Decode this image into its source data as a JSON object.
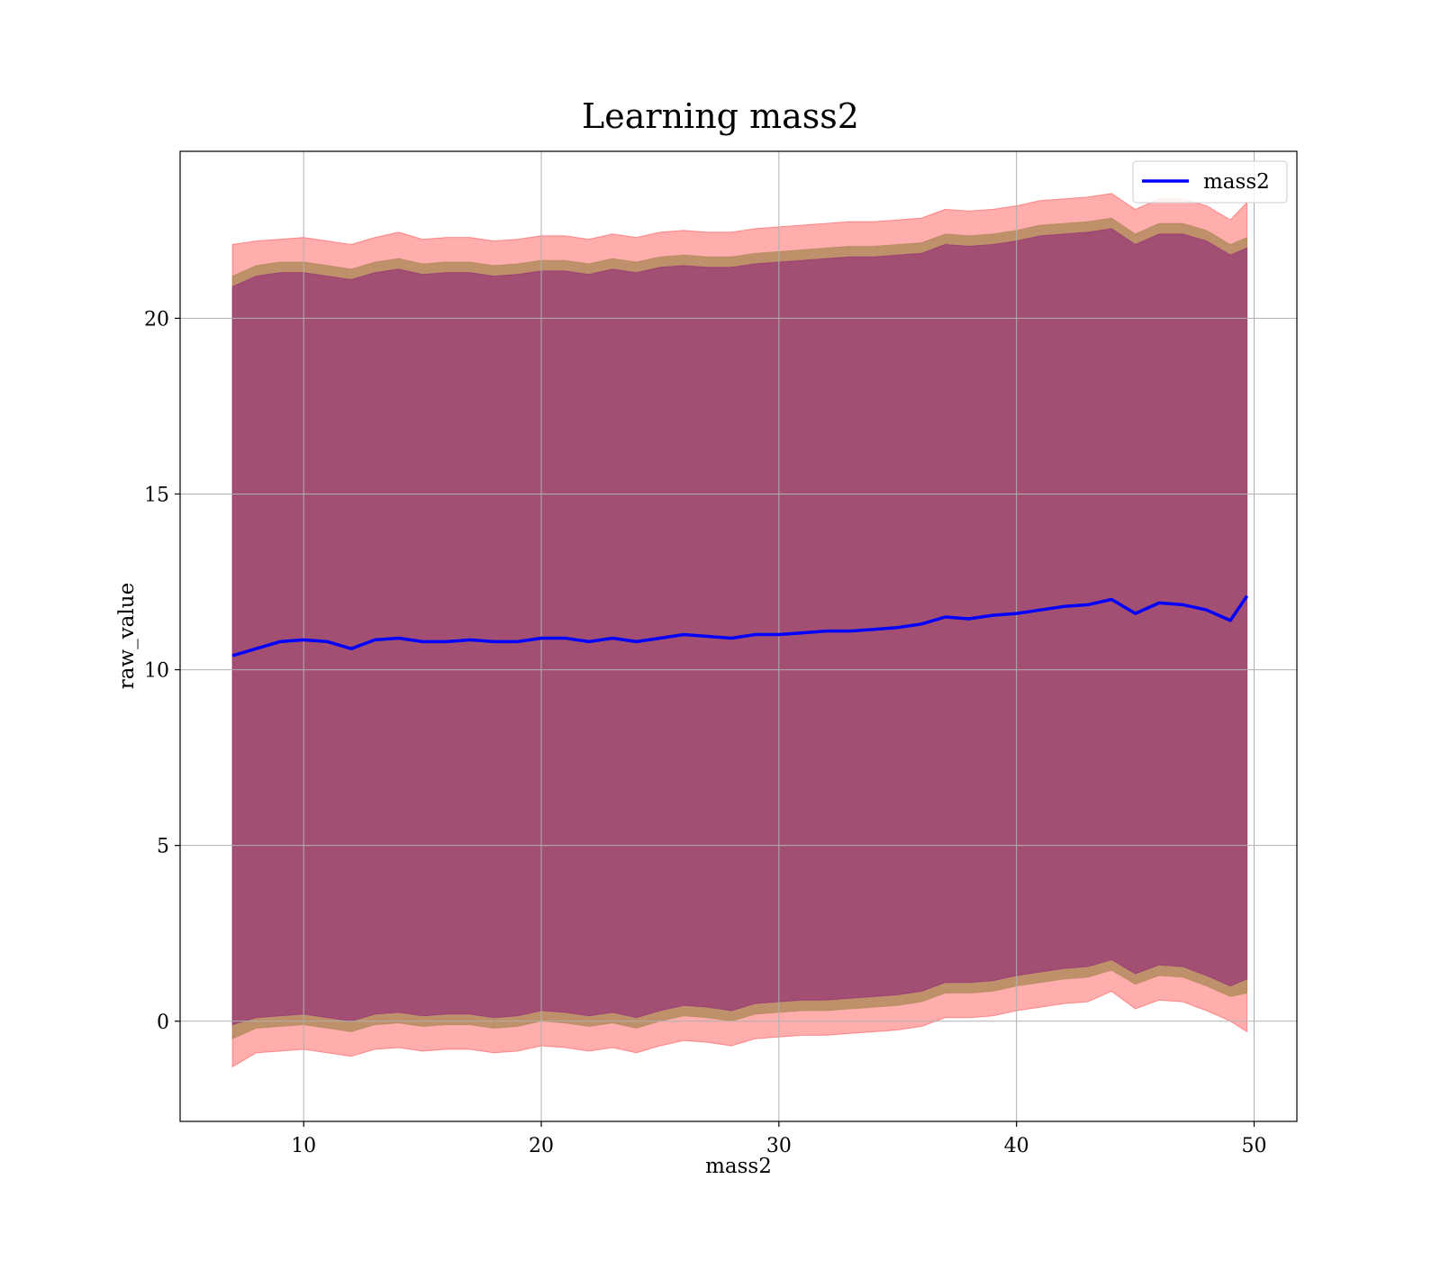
{
  "chart_data": {
    "type": "line",
    "title": "Learning mass2",
    "xlabel": "mass2",
    "ylabel": "raw_value",
    "xlim": [
      4.8,
      51.8
    ],
    "ylim": [
      -2.85,
      24.75
    ],
    "xticks": [
      10,
      20,
      30,
      40,
      50
    ],
    "yticks": [
      0,
      5,
      10,
      15,
      20
    ],
    "grid": true,
    "legend": {
      "position": "upper right",
      "entries": [
        "mass2"
      ]
    },
    "colors": {
      "line": "#0000ff",
      "band_outer": "#ff0000",
      "band_middle": "#8b7a33",
      "band_inner": "#800080",
      "grid": "#b0b0b0"
    },
    "series": [
      {
        "name": "mass2",
        "x": [
          7,
          8,
          9,
          10,
          11,
          12,
          13,
          14,
          15,
          16,
          17,
          18,
          19,
          20,
          21,
          22,
          23,
          24,
          25,
          26,
          27,
          28,
          29,
          30,
          31,
          32,
          33,
          34,
          35,
          36,
          37,
          38,
          39,
          40,
          41,
          42,
          43,
          44,
          45,
          46,
          47,
          48,
          49,
          49.7
        ],
        "y": [
          10.4,
          10.6,
          10.8,
          10.85,
          10.8,
          10.6,
          10.85,
          10.9,
          10.8,
          10.8,
          10.85,
          10.8,
          10.8,
          10.9,
          10.9,
          10.8,
          10.9,
          10.8,
          10.9,
          11.0,
          10.95,
          10.9,
          11.0,
          11.0,
          11.05,
          11.1,
          11.1,
          11.15,
          11.2,
          11.3,
          11.5,
          11.45,
          11.55,
          11.6,
          11.7,
          11.8,
          11.85,
          12.0,
          11.6,
          11.9,
          11.85,
          11.7,
          11.4,
          12.1
        ]
      }
    ],
    "bands": [
      {
        "layer": "outer",
        "x": [
          7,
          8,
          9,
          10,
          11,
          12,
          13,
          14,
          15,
          16,
          17,
          18,
          19,
          20,
          21,
          22,
          23,
          24,
          25,
          26,
          27,
          28,
          29,
          30,
          31,
          32,
          33,
          34,
          35,
          36,
          37,
          38,
          39,
          40,
          41,
          42,
          43,
          44,
          45,
          46,
          47,
          48,
          49,
          49.7
        ],
        "lower": [
          -1.3,
          -0.9,
          -0.85,
          -0.8,
          -0.9,
          -1.0,
          -0.8,
          -0.75,
          -0.85,
          -0.8,
          -0.8,
          -0.9,
          -0.85,
          -0.7,
          -0.75,
          -0.85,
          -0.75,
          -0.9,
          -0.7,
          -0.55,
          -0.6,
          -0.7,
          -0.5,
          -0.45,
          -0.4,
          -0.4,
          -0.35,
          -0.3,
          -0.25,
          -0.15,
          0.1,
          0.1,
          0.15,
          0.3,
          0.4,
          0.5,
          0.55,
          0.85,
          0.35,
          0.6,
          0.55,
          0.3,
          0.0,
          -0.3
        ],
        "upper": [
          22.1,
          22.2,
          22.25,
          22.3,
          22.2,
          22.1,
          22.3,
          22.45,
          22.25,
          22.3,
          22.3,
          22.2,
          22.25,
          22.35,
          22.35,
          22.25,
          22.4,
          22.3,
          22.45,
          22.5,
          22.45,
          22.45,
          22.55,
          22.6,
          22.65,
          22.7,
          22.75,
          22.75,
          22.8,
          22.85,
          23.1,
          23.05,
          23.1,
          23.2,
          23.35,
          23.4,
          23.45,
          23.55,
          23.1,
          23.4,
          23.4,
          23.2,
          22.8,
          23.3
        ]
      },
      {
        "layer": "middle",
        "x": [
          7,
          8,
          9,
          10,
          11,
          12,
          13,
          14,
          15,
          16,
          17,
          18,
          19,
          20,
          21,
          22,
          23,
          24,
          25,
          26,
          27,
          28,
          29,
          30,
          31,
          32,
          33,
          34,
          35,
          36,
          37,
          38,
          39,
          40,
          41,
          42,
          43,
          44,
          45,
          46,
          47,
          48,
          49,
          49.7
        ],
        "lower": [
          -0.5,
          -0.2,
          -0.15,
          -0.1,
          -0.2,
          -0.3,
          -0.1,
          -0.05,
          -0.15,
          -0.1,
          -0.1,
          -0.2,
          -0.15,
          0.0,
          -0.05,
          -0.15,
          -0.05,
          -0.2,
          0.0,
          0.15,
          0.1,
          0.0,
          0.2,
          0.25,
          0.3,
          0.3,
          0.35,
          0.4,
          0.45,
          0.55,
          0.8,
          0.8,
          0.85,
          1.0,
          1.1,
          1.2,
          1.25,
          1.45,
          1.05,
          1.3,
          1.25,
          1.0,
          0.7,
          0.8
        ],
        "upper": [
          21.2,
          21.5,
          21.6,
          21.6,
          21.5,
          21.4,
          21.6,
          21.7,
          21.55,
          21.6,
          21.6,
          21.5,
          21.55,
          21.65,
          21.65,
          21.55,
          21.7,
          21.6,
          21.75,
          21.8,
          21.75,
          21.75,
          21.85,
          21.9,
          21.95,
          22.0,
          22.05,
          22.05,
          22.1,
          22.15,
          22.4,
          22.35,
          22.4,
          22.5,
          22.65,
          22.7,
          22.75,
          22.85,
          22.4,
          22.7,
          22.7,
          22.5,
          22.1,
          22.3
        ]
      },
      {
        "layer": "inner",
        "x": [
          7,
          8,
          9,
          10,
          11,
          12,
          13,
          14,
          15,
          16,
          17,
          18,
          19,
          20,
          21,
          22,
          23,
          24,
          25,
          26,
          27,
          28,
          29,
          30,
          31,
          32,
          33,
          34,
          35,
          36,
          37,
          38,
          39,
          40,
          41,
          42,
          43,
          44,
          45,
          46,
          47,
          48,
          49,
          49.7
        ],
        "lower": [
          -0.1,
          0.1,
          0.15,
          0.2,
          0.1,
          0.0,
          0.2,
          0.25,
          0.15,
          0.2,
          0.2,
          0.1,
          0.15,
          0.3,
          0.25,
          0.15,
          0.25,
          0.1,
          0.3,
          0.45,
          0.4,
          0.3,
          0.5,
          0.55,
          0.6,
          0.6,
          0.65,
          0.7,
          0.75,
          0.85,
          1.1,
          1.1,
          1.15,
          1.3,
          1.4,
          1.5,
          1.55,
          1.75,
          1.35,
          1.6,
          1.55,
          1.3,
          1.0,
          1.2
        ],
        "upper": [
          20.9,
          21.2,
          21.3,
          21.3,
          21.2,
          21.1,
          21.3,
          21.4,
          21.25,
          21.3,
          21.3,
          21.2,
          21.25,
          21.35,
          21.35,
          21.25,
          21.4,
          21.3,
          21.45,
          21.5,
          21.45,
          21.45,
          21.55,
          21.6,
          21.65,
          21.7,
          21.75,
          21.75,
          21.8,
          21.85,
          22.1,
          22.05,
          22.1,
          22.2,
          22.35,
          22.4,
          22.45,
          22.55,
          22.1,
          22.4,
          22.4,
          22.2,
          21.8,
          22.0
        ]
      }
    ]
  }
}
